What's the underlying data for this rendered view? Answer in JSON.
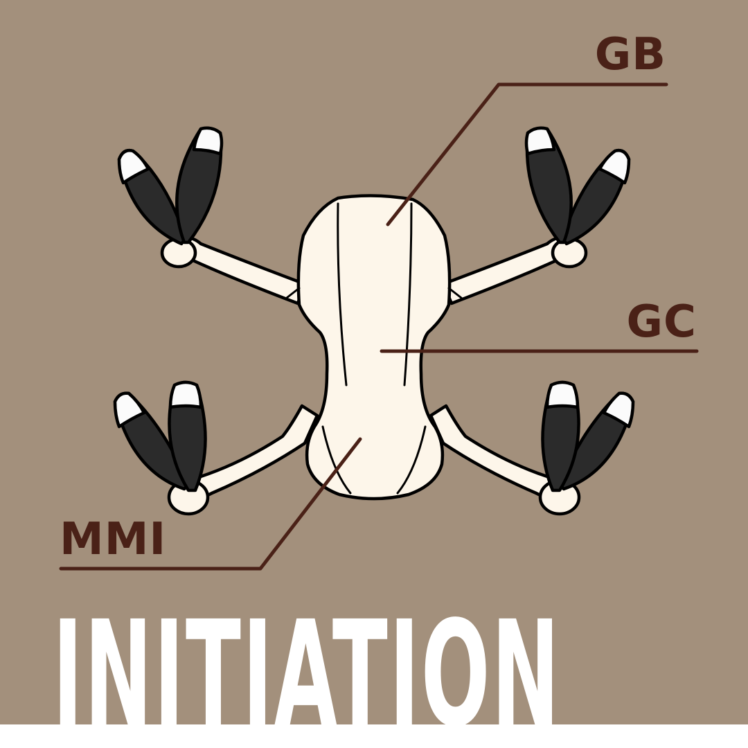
{
  "labels": {
    "gb": "GB",
    "gc": "GC",
    "mmi": "MMI"
  },
  "title": "INITIATION",
  "colors": {
    "background": "#a3907c",
    "callout": "#4a2117",
    "drone_body": "#fdf6ea",
    "propeller": "#2b2b2b",
    "title": "#ffffff"
  }
}
